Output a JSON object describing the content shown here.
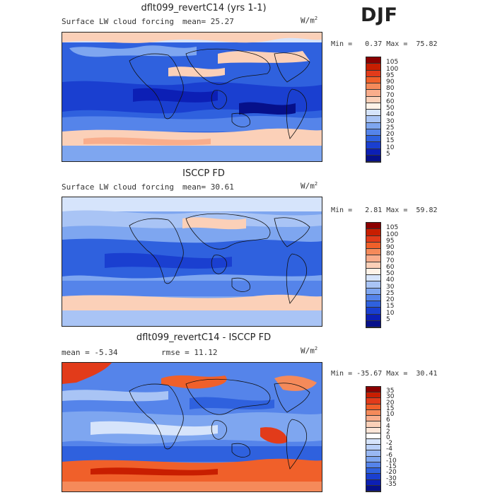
{
  "season": "DJF",
  "panels": [
    {
      "title": "dflt099_revertC14 (yrs 1-1)",
      "field_label": "Surface LW cloud forcing",
      "stat_text": "mean=  25.27",
      "units": "W/m",
      "units_exp": "2",
      "minmax": "Min =   0.37 Max =  75.82",
      "colorbar": {
        "labels": [
          "105",
          "100",
          "95",
          "90",
          "80",
          "70",
          "60",
          "50",
          "40",
          "30",
          "25",
          "20",
          "15",
          "10",
          "5"
        ],
        "colors": [
          "#8b0000",
          "#c81e00",
          "#e23b1a",
          "#f0602a",
          "#f58a5a",
          "#f9ad8c",
          "#fbd0b8",
          "#fff3e8",
          "#d6e4fb",
          "#a9c4f5",
          "#7ea6f0",
          "#5584ea",
          "#2f61de",
          "#1a3fd0",
          "#0c1fb5",
          "#06108a"
        ]
      }
    },
    {
      "title": "ISCCP FD",
      "field_label": "Surface LW cloud forcing",
      "stat_text": "mean=  30.61",
      "units": "W/m",
      "units_exp": "2",
      "minmax": "Min =   2.81 Max =  59.82",
      "colorbar": {
        "labels": [
          "105",
          "100",
          "95",
          "90",
          "80",
          "70",
          "60",
          "50",
          "40",
          "30",
          "25",
          "20",
          "15",
          "10",
          "5"
        ],
        "colors": [
          "#8b0000",
          "#c81e00",
          "#e23b1a",
          "#f0602a",
          "#f58a5a",
          "#f9ad8c",
          "#fbd0b8",
          "#fff3e8",
          "#d6e4fb",
          "#a9c4f5",
          "#7ea6f0",
          "#5584ea",
          "#2f61de",
          "#1a3fd0",
          "#0c1fb5",
          "#06108a"
        ]
      }
    },
    {
      "title": "dflt099_revertC14 - ISCCP FD",
      "mean_text": "mean =   -5.34",
      "rmse_text": "rmse =   11.12",
      "units": "W/m",
      "units_exp": "2",
      "minmax": "Min = -35.67 Max =  30.41",
      "colorbar": {
        "labels": [
          "35",
          "30",
          "20",
          "15",
          "10",
          "6",
          "4",
          "2",
          "0",
          "-2",
          "-4",
          "-6",
          "-10",
          "-15",
          "-20",
          "-30",
          "-35"
        ],
        "colors": [
          "#8b0000",
          "#c81e00",
          "#e23b1a",
          "#f0602a",
          "#f58a5a",
          "#f9ad8c",
          "#fbd0b8",
          "#fde6d8",
          "#ffffff",
          "#d6e4fb",
          "#b9d0f8",
          "#99b8f3",
          "#7ea6f0",
          "#5584ea",
          "#2f61de",
          "#1a3fd0",
          "#0c1fb5",
          "#06108a"
        ]
      }
    }
  ]
}
